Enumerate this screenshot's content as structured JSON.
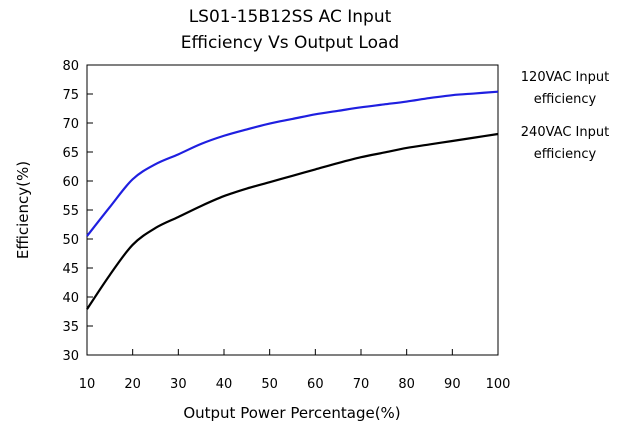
{
  "chart_data": {
    "type": "line",
    "title": [
      "LS01-15B12SS AC Input",
      "Efficiency Vs Output Load"
    ],
    "xlabel": "Output Power Percentage(%)",
    "ylabel": "Efficiency(%)",
    "xlim": [
      10,
      100
    ],
    "ylim": [
      30,
      80
    ],
    "xticks": [
      "10",
      "20",
      "30",
      "40",
      "50",
      "60",
      "70",
      "80",
      "90",
      "100"
    ],
    "yticks": [
      "30",
      "35",
      "40",
      "45",
      "50",
      "55",
      "60",
      "65",
      "70",
      "75",
      "80"
    ],
    "grid": false,
    "legend_position": "right",
    "series": [
      {
        "name": [
          "120VAC Input",
          "efficiency"
        ],
        "color": "#1f1fe0",
        "x": [
          10,
          15,
          20,
          25,
          30,
          35,
          40,
          45,
          50,
          55,
          60,
          65,
          70,
          75,
          80,
          85,
          90,
          95,
          100
        ],
        "y": [
          50.5,
          55.5,
          60.3,
          62.9,
          64.6,
          66.4,
          67.8,
          68.9,
          69.9,
          70.7,
          71.5,
          72.1,
          72.7,
          73.2,
          73.7,
          74.3,
          74.8,
          75.1,
          75.4
        ]
      },
      {
        "name": [
          "240VAC Input",
          "efficiency"
        ],
        "color": "#000000",
        "x": [
          10,
          15,
          20,
          25,
          30,
          35,
          40,
          45,
          50,
          55,
          60,
          65,
          70,
          75,
          80,
          85,
          90,
          95,
          100
        ],
        "y": [
          37.9,
          43.8,
          49.0,
          51.9,
          53.8,
          55.7,
          57.4,
          58.7,
          59.8,
          60.9,
          62.0,
          63.1,
          64.1,
          64.9,
          65.7,
          66.3,
          66.9,
          67.5,
          68.1
        ]
      }
    ]
  }
}
